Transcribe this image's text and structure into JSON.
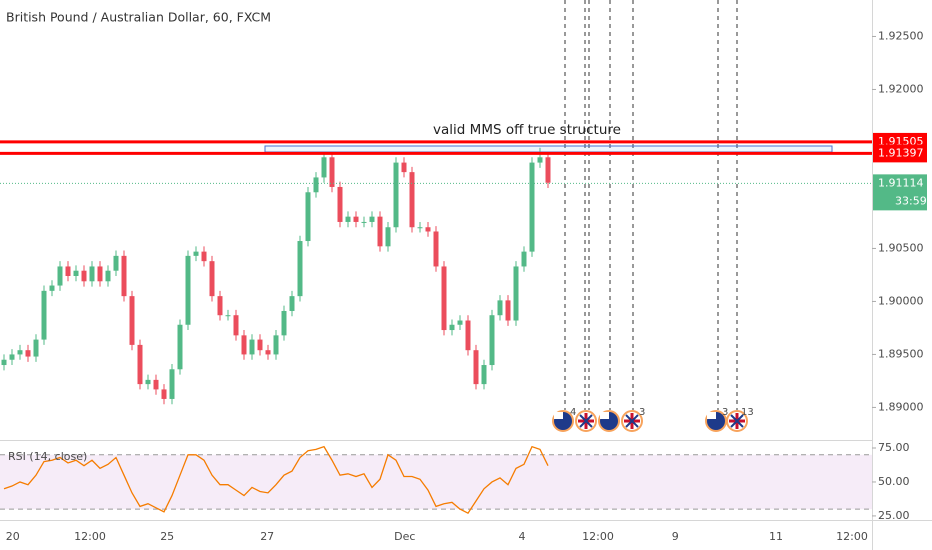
{
  "chart_data": [
    {
      "type": "candlestick",
      "title": "British Pound / Australian Dollar, 60, FXCM",
      "up_color": "#53b987",
      "down_color": "#eb4d5c",
      "open": [
        1.894,
        1.8945,
        1.895,
        1.8954,
        1.8948,
        1.8964,
        1.901,
        1.9015,
        1.9033,
        1.9024,
        1.9029,
        1.9019,
        1.9033,
        1.9019,
        1.9029,
        1.9043,
        1.9005,
        1.8959,
        1.8922,
        1.8926,
        1.8917,
        1.8908,
        1.8936,
        1.8978,
        1.9043,
        1.9047,
        1.9038,
        1.9005,
        1.8987,
        1.8987,
        1.8968,
        1.895,
        1.8964,
        1.8954,
        1.895,
        1.8968,
        1.8991,
        1.9005,
        1.9057,
        1.9103,
        1.9117,
        1.9136,
        1.9108,
        1.9075,
        1.908,
        1.9075,
        1.9075,
        1.908,
        1.9052,
        1.907,
        1.9131,
        1.9122,
        1.907,
        1.907,
        1.9066,
        1.9033,
        1.8973,
        1.8978,
        1.8982,
        1.8954,
        1.8922,
        1.894,
        1.8987,
        1.9001,
        1.8982,
        1.9033,
        1.9047,
        1.9131,
        1.9136
      ],
      "high": [
        1.895,
        1.8955,
        1.8959,
        1.8959,
        1.8969,
        1.9015,
        1.902,
        1.9038,
        1.9038,
        1.9034,
        1.9034,
        1.9038,
        1.9038,
        1.9034,
        1.9048,
        1.9048,
        1.901,
        1.8964,
        1.8931,
        1.8931,
        1.8922,
        1.8941,
        1.8983,
        1.9048,
        1.9052,
        1.9052,
        1.9043,
        1.901,
        1.8992,
        1.8992,
        1.8973,
        1.8969,
        1.8969,
        1.8959,
        1.8973,
        1.8996,
        1.901,
        1.9062,
        1.9108,
        1.9122,
        1.9141,
        1.9141,
        1.9113,
        1.9085,
        1.9085,
        1.908,
        1.9085,
        1.9085,
        1.9075,
        1.9136,
        1.9136,
        1.9127,
        1.9075,
        1.9075,
        1.9071,
        1.9038,
        1.8983,
        1.8987,
        1.8987,
        1.8959,
        1.8945,
        1.8992,
        1.9006,
        1.9006,
        1.9038,
        1.9052,
        1.9136,
        1.9145,
        1.9141
      ],
      "low": [
        1.8935,
        1.894,
        1.8945,
        1.8943,
        1.8943,
        1.8959,
        1.9005,
        1.901,
        1.9019,
        1.9019,
        1.9014,
        1.9014,
        1.9014,
        1.9014,
        1.9024,
        1.9,
        1.8954,
        1.8917,
        1.8917,
        1.8912,
        1.8903,
        1.8903,
        1.8931,
        1.8973,
        1.9038,
        1.9033,
        1.9,
        1.8982,
        1.8982,
        1.8963,
        1.8945,
        1.8945,
        1.8949,
        1.8945,
        1.8945,
        1.8963,
        1.8986,
        1.9,
        1.9052,
        1.9098,
        1.9112,
        1.9103,
        1.907,
        1.907,
        1.907,
        1.907,
        1.907,
        1.9047,
        1.9047,
        1.9065,
        1.9117,
        1.9065,
        1.9065,
        1.9061,
        1.9028,
        1.8968,
        1.8968,
        1.8973,
        1.8949,
        1.8917,
        1.8917,
        1.8935,
        1.8982,
        1.8977,
        1.8977,
        1.9028,
        1.9042,
        1.9126,
        1.9107
      ],
      "close": [
        1.8945,
        1.895,
        1.8954,
        1.8948,
        1.8964,
        1.901,
        1.9015,
        1.9033,
        1.9024,
        1.9029,
        1.9019,
        1.9033,
        1.9019,
        1.9029,
        1.9043,
        1.9005,
        1.8959,
        1.8922,
        1.8926,
        1.8917,
        1.8908,
        1.8936,
        1.8978,
        1.9043,
        1.9047,
        1.9038,
        1.9005,
        1.8987,
        1.8987,
        1.8968,
        1.895,
        1.8964,
        1.8954,
        1.895,
        1.8968,
        1.8991,
        1.9005,
        1.9057,
        1.9103,
        1.9117,
        1.9136,
        1.9108,
        1.9075,
        1.908,
        1.9075,
        1.9075,
        1.908,
        1.9052,
        1.907,
        1.9131,
        1.9122,
        1.907,
        1.907,
        1.9066,
        1.9033,
        1.8973,
        1.8978,
        1.8982,
        1.8954,
        1.8922,
        1.894,
        1.8987,
        1.9001,
        1.8982,
        1.9033,
        1.9047,
        1.9131,
        1.9136,
        1.9112
      ],
      "xlim": [
        -0.5,
        108.5
      ],
      "xticks": [
        {
          "value": 1.1,
          "label": "20"
        },
        {
          "value": 10.75,
          "label": "12:00"
        },
        {
          "value": 20.4,
          "label": "25"
        },
        {
          "value": 32.9,
          "label": "27"
        },
        {
          "value": 50.1,
          "label": "Dec"
        },
        {
          "value": 64.75,
          "label": "4"
        },
        {
          "value": 74.25,
          "label": "12:00"
        },
        {
          "value": 83.9,
          "label": "9"
        },
        {
          "value": 96.5,
          "label": "11"
        },
        {
          "value": 106,
          "label": "12:00"
        }
      ],
      "ylim": [
        1.88721,
        1.92844
      ],
      "yticks": [
        {
          "value": 1.925,
          "label": "1.92500"
        },
        {
          "value": 1.92,
          "label": "1.92000"
        },
        {
          "value": 1.905,
          "label": "1.90500"
        },
        {
          "value": 1.9,
          "label": "1.90000"
        },
        {
          "value": 1.895,
          "label": "1.89500"
        },
        {
          "value": 1.89,
          "label": "1.89000"
        }
      ],
      "levels": [
        {
          "value": 1.91505,
          "color": "#ff0000"
        },
        {
          "value": 1.91397,
          "color": "#ff0000"
        }
      ],
      "last_price": 1.91114,
      "last_price_color": "#53b987",
      "countdown": "33:59",
      "annotation": "valid MMS off true structure",
      "event_counts": [
        "4",
        "3",
        "3",
        "13"
      ]
    },
    {
      "type": "line",
      "title": "RSI (14, close)",
      "color": "#f57c00",
      "values": [
        45,
        47,
        50,
        48,
        55,
        65,
        66,
        68,
        64,
        66,
        62,
        66,
        60,
        63,
        68,
        55,
        42,
        32,
        34,
        31,
        28,
        40,
        55,
        70,
        70,
        66,
        55,
        48,
        48,
        44,
        40,
        46,
        43,
        42,
        48,
        55,
        58,
        68,
        73,
        74,
        76,
        66,
        55,
        56,
        54,
        56,
        46,
        52,
        70,
        66,
        54,
        54,
        52,
        44,
        32,
        34,
        35,
        30,
        27,
        36,
        45,
        50,
        53,
        48,
        60,
        63,
        76,
        74,
        62
      ],
      "ylim": [
        22,
        80.9
      ],
      "yticks": [
        {
          "value": 75,
          "label": "75.00"
        },
        {
          "value": 50,
          "label": "50.00"
        },
        {
          "value": 25,
          "label": "25.00"
        }
      ],
      "bands": [
        70,
        30
      ]
    }
  ]
}
